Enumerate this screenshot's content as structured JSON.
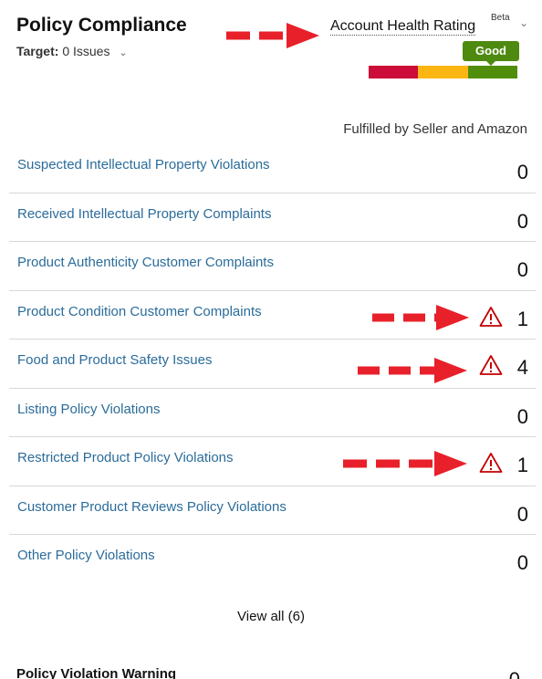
{
  "header": {
    "title": "Policy Compliance",
    "target_label": "Target:",
    "target_value": "0 Issues",
    "account_health_rating": "Account Health Rating",
    "beta": "Beta",
    "rating_status": "Good",
    "rating_colors": [
      "#cc0c39",
      "#fcb614",
      "#508d0a"
    ],
    "chevron_icon": "chevron-down-icon"
  },
  "fulfilled_label": "Fulfilled by Seller and Amazon",
  "rows": [
    {
      "label": "Suspected Intellectual Property Violations",
      "value": "0",
      "warning": false
    },
    {
      "label": "Received Intellectual Property Complaints",
      "value": "0",
      "warning": false
    },
    {
      "label": "Product Authenticity Customer Complaints",
      "value": "0",
      "warning": false
    },
    {
      "label": "Product Condition Customer Complaints",
      "value": "1",
      "warning": true
    },
    {
      "label": "Food and Product Safety Issues",
      "value": "4",
      "warning": true
    },
    {
      "label": "Listing Policy Violations",
      "value": "0",
      "warning": false
    },
    {
      "label": "Restricted Product Policy Violations",
      "value": "1",
      "warning": true
    },
    {
      "label": "Customer Product Reviews Policy Violations",
      "value": "0",
      "warning": false
    },
    {
      "label": "Other Policy Violations",
      "value": "0",
      "warning": false
    }
  ],
  "view_all": "View all (6)",
  "policy_violation_warning": {
    "label": "Policy Violation Warning",
    "value": "0"
  },
  "colors": {
    "link": "#2b6c9a",
    "warning_icon": "#c40000",
    "annotation_arrow": "#e8202a"
  }
}
